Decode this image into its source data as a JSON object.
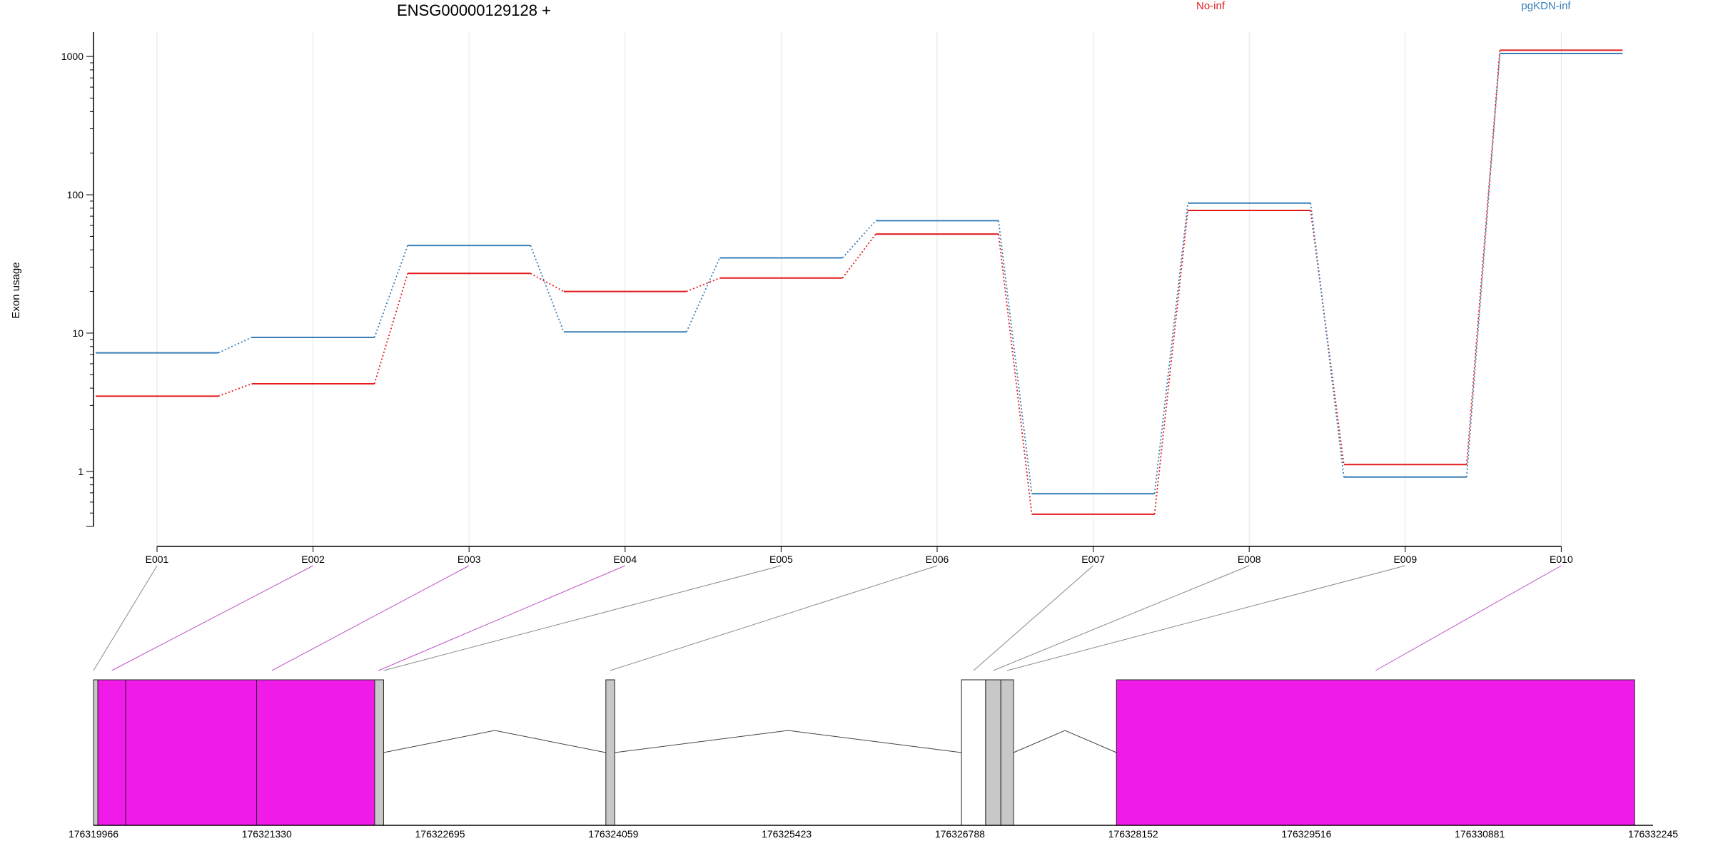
{
  "chart_data": {
    "type": "line",
    "title": "ENSG00000129128 +",
    "ylabel": "Exon usage",
    "xlabel": "",
    "y_scale": "log",
    "ylim": [
      0.4,
      1500
    ],
    "y_ticks": [
      {
        "value": 1,
        "label": "1"
      },
      {
        "value": 10,
        "label": "10"
      },
      {
        "value": 100,
        "label": "100"
      },
      {
        "value": 1000,
        "label": "1000"
      }
    ],
    "categories": [
      "E001",
      "E002",
      "E003",
      "E004",
      "E005",
      "E006",
      "E007",
      "E008",
      "E009",
      "E010"
    ],
    "grid": "vertical",
    "legend_placement": "top",
    "series": [
      {
        "name": "No-inf",
        "color": "#e41a1c",
        "values": [
          3.5,
          4.3,
          27,
          20,
          25,
          52,
          0.49,
          77,
          1.12,
          1110
        ]
      },
      {
        "name": "pgKDN-inf",
        "color": "#377eb8",
        "values": [
          7.2,
          9.3,
          43,
          10.2,
          35,
          65,
          0.69,
          87,
          0.91,
          1050
        ]
      }
    ],
    "gene_model": {
      "coordinates": [
        "176319966",
        "176321330",
        "176322695",
        "176324059",
        "176325423",
        "176326788",
        "176328152",
        "176329516",
        "176330881",
        "176332245"
      ],
      "start": 176319966,
      "end": 176332245,
      "highlight_color": "#f11be9",
      "exon_color": "#c8c8c8",
      "exons": [
        {
          "id": "E001",
          "start": 176319966,
          "end": 176320000,
          "fill": "gray"
        },
        {
          "id": "E002",
          "start": 176320000,
          "end": 176320220,
          "fill": "highlight"
        },
        {
          "id": "E003",
          "start": 176320220,
          "end": 176321250,
          "fill": "highlight"
        },
        {
          "id": "E004",
          "start": 176321250,
          "end": 176322180,
          "fill": "highlight"
        },
        {
          "id": "E005",
          "start": 176322180,
          "end": 176322250,
          "fill": "gray"
        },
        {
          "id": "E006",
          "start": 176324000,
          "end": 176324070,
          "fill": "gray"
        },
        {
          "id": "E007",
          "start": 176326800,
          "end": 176326990,
          "fill": "white"
        },
        {
          "id": "E008",
          "start": 176326990,
          "end": 176327110,
          "fill": "gray"
        },
        {
          "id": "E009",
          "start": 176327110,
          "end": 176327210,
          "fill": "gray"
        },
        {
          "id": "E010",
          "start": 176328020,
          "end": 176332100,
          "fill": "highlight"
        }
      ],
      "introns": [
        {
          "from": 176322250,
          "to": 176324000
        },
        {
          "from": 176324070,
          "to": 176326800
        },
        {
          "from": 176327210,
          "to": 176328020
        }
      ],
      "connectors": [
        {
          "exon": "E001",
          "target": 176319966,
          "color": "gray"
        },
        {
          "exon": "E002",
          "target": 176320110,
          "color": "highlight"
        },
        {
          "exon": "E003",
          "target": 176321370,
          "color": "highlight"
        },
        {
          "exon": "E004",
          "target": 176322210,
          "color": "highlight"
        },
        {
          "exon": "E005",
          "target": 176322250,
          "color": "gray"
        },
        {
          "exon": "E006",
          "target": 176324035,
          "color": "gray"
        },
        {
          "exon": "E007",
          "target": 176326895,
          "color": "gray"
        },
        {
          "exon": "E008",
          "target": 176327050,
          "color": "gray"
        },
        {
          "exon": "E009",
          "target": 176327160,
          "color": "gray"
        },
        {
          "exon": "E010",
          "target": 176330060,
          "color": "highlight"
        }
      ]
    }
  }
}
